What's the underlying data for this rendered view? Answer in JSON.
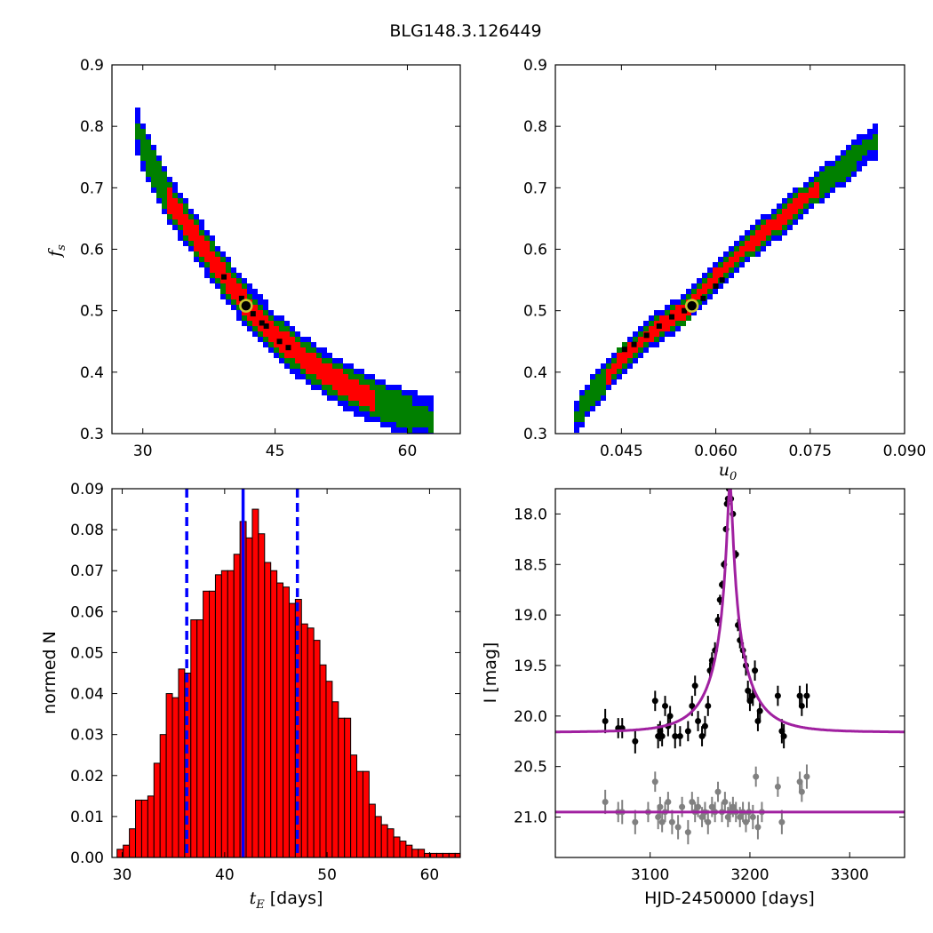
{
  "figure_title": "BLG148.3.126449",
  "colors": {
    "sigma1": "#ff0000",
    "sigma2": "#008000",
    "sigma3": "#0000ff",
    "best": "#000000",
    "marker_edge": "#c8c832",
    "hist_fill": "#ff0000",
    "median_line": "#0000ff",
    "model": "#a020a0",
    "data_main": "#000000",
    "data_baseline": "#808080"
  },
  "chart_data": [
    {
      "type": "heatmap",
      "panel": "top-left",
      "title": "",
      "xlabel": "",
      "ylabel": "f_s",
      "ylabel_main": "f",
      "ylabel_sub": "s",
      "xlim": [
        26.5,
        66
      ],
      "ylim": [
        0.3,
        0.9
      ],
      "xticks": [
        30,
        45,
        60
      ],
      "xtick_labels": [
        "30",
        "45",
        "60"
      ],
      "yticks": [
        0.3,
        0.4,
        0.5,
        0.6,
        0.7,
        0.8,
        0.9
      ],
      "ytick_labels": [
        "0.3",
        "0.4",
        "0.5",
        "0.6",
        "0.7",
        "0.8",
        "0.9"
      ],
      "best_fit": {
        "x": 41.7,
        "y": 0.508
      },
      "ridge": [
        [
          29.2,
          0.8
        ],
        [
          30.5,
          0.75
        ],
        [
          33,
          0.68
        ],
        [
          36,
          0.62
        ],
        [
          39,
          0.56
        ],
        [
          42,
          0.505
        ],
        [
          45,
          0.46
        ],
        [
          48,
          0.425
        ],
        [
          51,
          0.395
        ],
        [
          54,
          0.37
        ],
        [
          57,
          0.35
        ],
        [
          60,
          0.335
        ],
        [
          62.5,
          0.322
        ]
      ],
      "band_widths": {
        "sigma1": 0.018,
        "sigma2": 0.028,
        "sigma3": 0.038
      },
      "best_samples": [
        [
          39.2,
          0.555
        ],
        [
          41.2,
          0.52
        ],
        [
          42.5,
          0.495
        ],
        [
          44,
          0.475
        ],
        [
          45.5,
          0.45
        ],
        [
          46.5,
          0.44
        ],
        [
          43.5,
          0.48
        ]
      ]
    },
    {
      "type": "heatmap",
      "panel": "top-right",
      "title": "",
      "xlabel": "u_0",
      "xlabel_main": "u",
      "xlabel_sub": "0",
      "ylabel": "",
      "xlim": [
        0.0345,
        0.09
      ],
      "ylim": [
        0.3,
        0.9
      ],
      "xticks": [
        0.045,
        0.06,
        0.075,
        0.09
      ],
      "xtick_labels": [
        "0.045",
        "0.060",
        "0.075",
        "0.090"
      ],
      "yticks": [
        0.3,
        0.4,
        0.5,
        0.6,
        0.7,
        0.8,
        0.9
      ],
      "ytick_labels": [
        "0.3",
        "0.4",
        "0.5",
        "0.6",
        "0.7",
        "0.8",
        "0.9"
      ],
      "best_fit": {
        "x": 0.0562,
        "y": 0.508
      },
      "ridge": [
        [
          0.0375,
          0.322
        ],
        [
          0.04,
          0.36
        ],
        [
          0.045,
          0.42
        ],
        [
          0.05,
          0.467
        ],
        [
          0.055,
          0.5
        ],
        [
          0.06,
          0.555
        ],
        [
          0.065,
          0.605
        ],
        [
          0.07,
          0.645
        ],
        [
          0.075,
          0.69
        ],
        [
          0.08,
          0.73
        ],
        [
          0.085,
          0.775
        ]
      ],
      "band_widths": {
        "sigma1": 0.012,
        "sigma2": 0.02,
        "sigma3": 0.028
      },
      "best_samples": [
        [
          0.0455,
          0.437
        ],
        [
          0.047,
          0.445
        ],
        [
          0.049,
          0.46
        ],
        [
          0.051,
          0.475
        ],
        [
          0.053,
          0.49
        ],
        [
          0.055,
          0.5
        ],
        [
          0.058,
          0.52
        ],
        [
          0.06,
          0.54
        ],
        [
          0.061,
          0.55
        ]
      ]
    },
    {
      "type": "bar",
      "panel": "bottom-left",
      "title": "",
      "xlabel": "t_E [days]",
      "xlabel_main": "t",
      "xlabel_sub": "E",
      "xlabel_rest": " [days]",
      "ylabel": "normed N",
      "xlim": [
        29,
        63
      ],
      "ylim": [
        0,
        0.09
      ],
      "xticks": [
        30,
        40,
        50,
        60
      ],
      "xtick_labels": [
        "30",
        "40",
        "50",
        "60"
      ],
      "yticks": [
        0,
        0.01,
        0.02,
        0.03,
        0.04,
        0.05,
        0.06,
        0.07,
        0.08,
        0.09
      ],
      "ytick_labels": [
        "0.00",
        "0.01",
        "0.02",
        "0.03",
        "0.04",
        "0.05",
        "0.06",
        "0.07",
        "0.08",
        "0.09"
      ],
      "bin_start": 29.5,
      "bin_width": 0.6,
      "values": [
        0.002,
        0.003,
        0.007,
        0.014,
        0.014,
        0.015,
        0.023,
        0.03,
        0.04,
        0.039,
        0.046,
        0.045,
        0.058,
        0.058,
        0.065,
        0.065,
        0.069,
        0.07,
        0.07,
        0.074,
        0.082,
        0.078,
        0.085,
        0.079,
        0.072,
        0.07,
        0.067,
        0.066,
        0.062,
        0.063,
        0.057,
        0.056,
        0.053,
        0.047,
        0.043,
        0.038,
        0.034,
        0.034,
        0.025,
        0.021,
        0.021,
        0.013,
        0.01,
        0.008,
        0.007,
        0.005,
        0.004,
        0.003,
        0.002,
        0.002,
        0.001,
        0.001,
        0.001,
        0.001,
        0.001,
        0.001,
        0.0005,
        0.001,
        0.0005
      ],
      "median": 41.8,
      "lower_bound": 36.3,
      "upper_bound": 47.1
    },
    {
      "type": "scatter",
      "panel": "bottom-right",
      "title": "",
      "xlabel": "HJD-2450000 [days]",
      "ylabel": "I [mag]",
      "xlim": [
        3005,
        3355
      ],
      "ylim": [
        21.4,
        17.75
      ],
      "y_inverted": true,
      "xticks": [
        3100,
        3200,
        3300
      ],
      "xtick_labels": [
        "3100",
        "3200",
        "3300"
      ],
      "yticks": [
        18.0,
        18.5,
        19.0,
        19.5,
        20.0,
        20.5,
        21.0
      ],
      "ytick_labels": [
        "18.0",
        "18.5",
        "19.0",
        "19.5",
        "20.0",
        "20.5",
        "21.0"
      ],
      "model": {
        "t0": 3180,
        "tE": 41.7,
        "u0": 0.0562,
        "fs": 0.508,
        "baseline_mag": 20.16
      },
      "baseline_model_mag": 20.95,
      "series": [
        {
          "role": "event",
          "points": [
            [
              3055,
              20.05,
              0.12
            ],
            [
              3068,
              20.12,
              0.1
            ],
            [
              3072,
              20.12,
              0.1
            ],
            [
              3085,
              20.25,
              0.12
            ],
            [
              3105,
              19.85,
              0.1
            ],
            [
              3108,
              20.2,
              0.12
            ],
            [
              3110,
              20.15,
              0.1
            ],
            [
              3112,
              20.2,
              0.1
            ],
            [
              3115,
              19.9,
              0.1
            ],
            [
              3118,
              20.1,
              0.1
            ],
            [
              3120,
              20.0,
              0.1
            ],
            [
              3125,
              20.2,
              0.12
            ],
            [
              3130,
              20.2,
              0.1
            ],
            [
              3138,
              20.15,
              0.1
            ],
            [
              3142,
              19.9,
              0.1
            ],
            [
              3145,
              19.7,
              0.1
            ],
            [
              3148,
              20.05,
              0.1
            ],
            [
              3152,
              20.2,
              0.1
            ],
            [
              3155,
              20.1,
              0.1
            ],
            [
              3158,
              19.9,
              0.1
            ],
            [
              3160,
              19.55,
              0.08
            ],
            [
              3162,
              19.45,
              0.08
            ],
            [
              3165,
              19.35,
              0.08
            ],
            [
              3168,
              19.05,
              0.06
            ],
            [
              3170,
              18.85,
              0.05
            ],
            [
              3172,
              18.7,
              0.04
            ],
            [
              3174,
              18.5,
              0.04
            ],
            [
              3176,
              18.15,
              0.03
            ],
            [
              3177,
              17.9,
              0.03
            ],
            [
              3178,
              17.85,
              0.03
            ],
            [
              3179,
              17.75,
              0.03
            ],
            [
              3181,
              17.85,
              0.03
            ],
            [
              3183,
              18.0,
              0.03
            ],
            [
              3186,
              18.4,
              0.04
            ],
            [
              3188,
              19.1,
              0.06
            ],
            [
              3190,
              19.25,
              0.08
            ],
            [
              3193,
              19.35,
              0.08
            ],
            [
              3196,
              19.5,
              0.1
            ],
            [
              3198,
              19.75,
              0.1
            ],
            [
              3200,
              19.85,
              0.1
            ],
            [
              3203,
              19.8,
              0.1
            ],
            [
              3205,
              19.55,
              0.1
            ],
            [
              3208,
              20.05,
              0.1
            ],
            [
              3210,
              19.95,
              0.1
            ],
            [
              3228,
              19.8,
              0.1
            ],
            [
              3232,
              20.15,
              0.12
            ],
            [
              3234,
              20.2,
              0.12
            ],
            [
              3250,
              19.8,
              0.1
            ],
            [
              3252,
              19.9,
              0.1
            ],
            [
              3257,
              19.8,
              0.12
            ]
          ]
        },
        {
          "role": "baseline",
          "points": [
            [
              3055,
              20.85,
              0.12
            ],
            [
              3068,
              20.95,
              0.1
            ],
            [
              3072,
              20.95,
              0.12
            ],
            [
              3085,
              21.05,
              0.12
            ],
            [
              3098,
              20.95,
              0.1
            ],
            [
              3105,
              20.65,
              0.1
            ],
            [
              3108,
              21.0,
              0.12
            ],
            [
              3110,
              20.9,
              0.1
            ],
            [
              3112,
              21.05,
              0.1
            ],
            [
              3115,
              20.95,
              0.1
            ],
            [
              3118,
              20.85,
              0.1
            ],
            [
              3122,
              21.05,
              0.12
            ],
            [
              3128,
              21.1,
              0.12
            ],
            [
              3132,
              20.9,
              0.1
            ],
            [
              3138,
              21.15,
              0.12
            ],
            [
              3142,
              20.85,
              0.1
            ],
            [
              3145,
              20.95,
              0.1
            ],
            [
              3148,
              20.9,
              0.1
            ],
            [
              3152,
              21.0,
              0.1
            ],
            [
              3155,
              20.95,
              0.1
            ],
            [
              3158,
              21.05,
              0.12
            ],
            [
              3162,
              20.9,
              0.1
            ],
            [
              3165,
              20.95,
              0.1
            ],
            [
              3168,
              20.75,
              0.1
            ],
            [
              3172,
              20.95,
              0.1
            ],
            [
              3175,
              20.85,
              0.1
            ],
            [
              3178,
              21.0,
              0.1
            ],
            [
              3180,
              20.95,
              0.1
            ],
            [
              3183,
              20.9,
              0.1
            ],
            [
              3186,
              20.95,
              0.1
            ],
            [
              3190,
              21.0,
              0.1
            ],
            [
              3193,
              20.95,
              0.1
            ],
            [
              3196,
              21.05,
              0.1
            ],
            [
              3199,
              20.95,
              0.1
            ],
            [
              3203,
              21.0,
              0.12
            ],
            [
              3206,
              20.6,
              0.1
            ],
            [
              3208,
              21.1,
              0.12
            ],
            [
              3212,
              20.95,
              0.1
            ],
            [
              3228,
              20.7,
              0.1
            ],
            [
              3232,
              21.05,
              0.12
            ],
            [
              3250,
              20.65,
              0.1
            ],
            [
              3252,
              20.75,
              0.1
            ],
            [
              3257,
              20.6,
              0.12
            ]
          ]
        }
      ]
    }
  ]
}
